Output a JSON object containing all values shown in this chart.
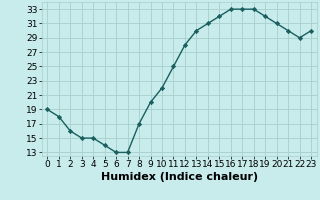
{
  "x": [
    0,
    1,
    2,
    3,
    4,
    5,
    6,
    7,
    8,
    9,
    10,
    11,
    12,
    13,
    14,
    15,
    16,
    17,
    18,
    19,
    20,
    21,
    22,
    23
  ],
  "y": [
    19,
    18,
    16,
    15,
    15,
    14,
    13,
    13,
    17,
    20,
    22,
    25,
    28,
    30,
    31,
    32,
    33,
    33,
    33,
    32,
    31,
    30,
    29,
    30
  ],
  "xlabel": "Humidex (Indice chaleur)",
  "ylim": [
    12.5,
    34
  ],
  "xlim": [
    -0.5,
    23.5
  ],
  "yticks": [
    13,
    15,
    17,
    19,
    21,
    23,
    25,
    27,
    29,
    31,
    33
  ],
  "xticks": [
    0,
    1,
    2,
    3,
    4,
    5,
    6,
    7,
    8,
    9,
    10,
    11,
    12,
    13,
    14,
    15,
    16,
    17,
    18,
    19,
    20,
    21,
    22,
    23
  ],
  "line_color": "#1a5e5e",
  "marker": "D",
  "marker_size": 2.2,
  "bg_color": "#c8ecec",
  "grid_color": "#a8cece",
  "tick_label_fontsize": 6.5,
  "xlabel_fontsize": 8.0
}
